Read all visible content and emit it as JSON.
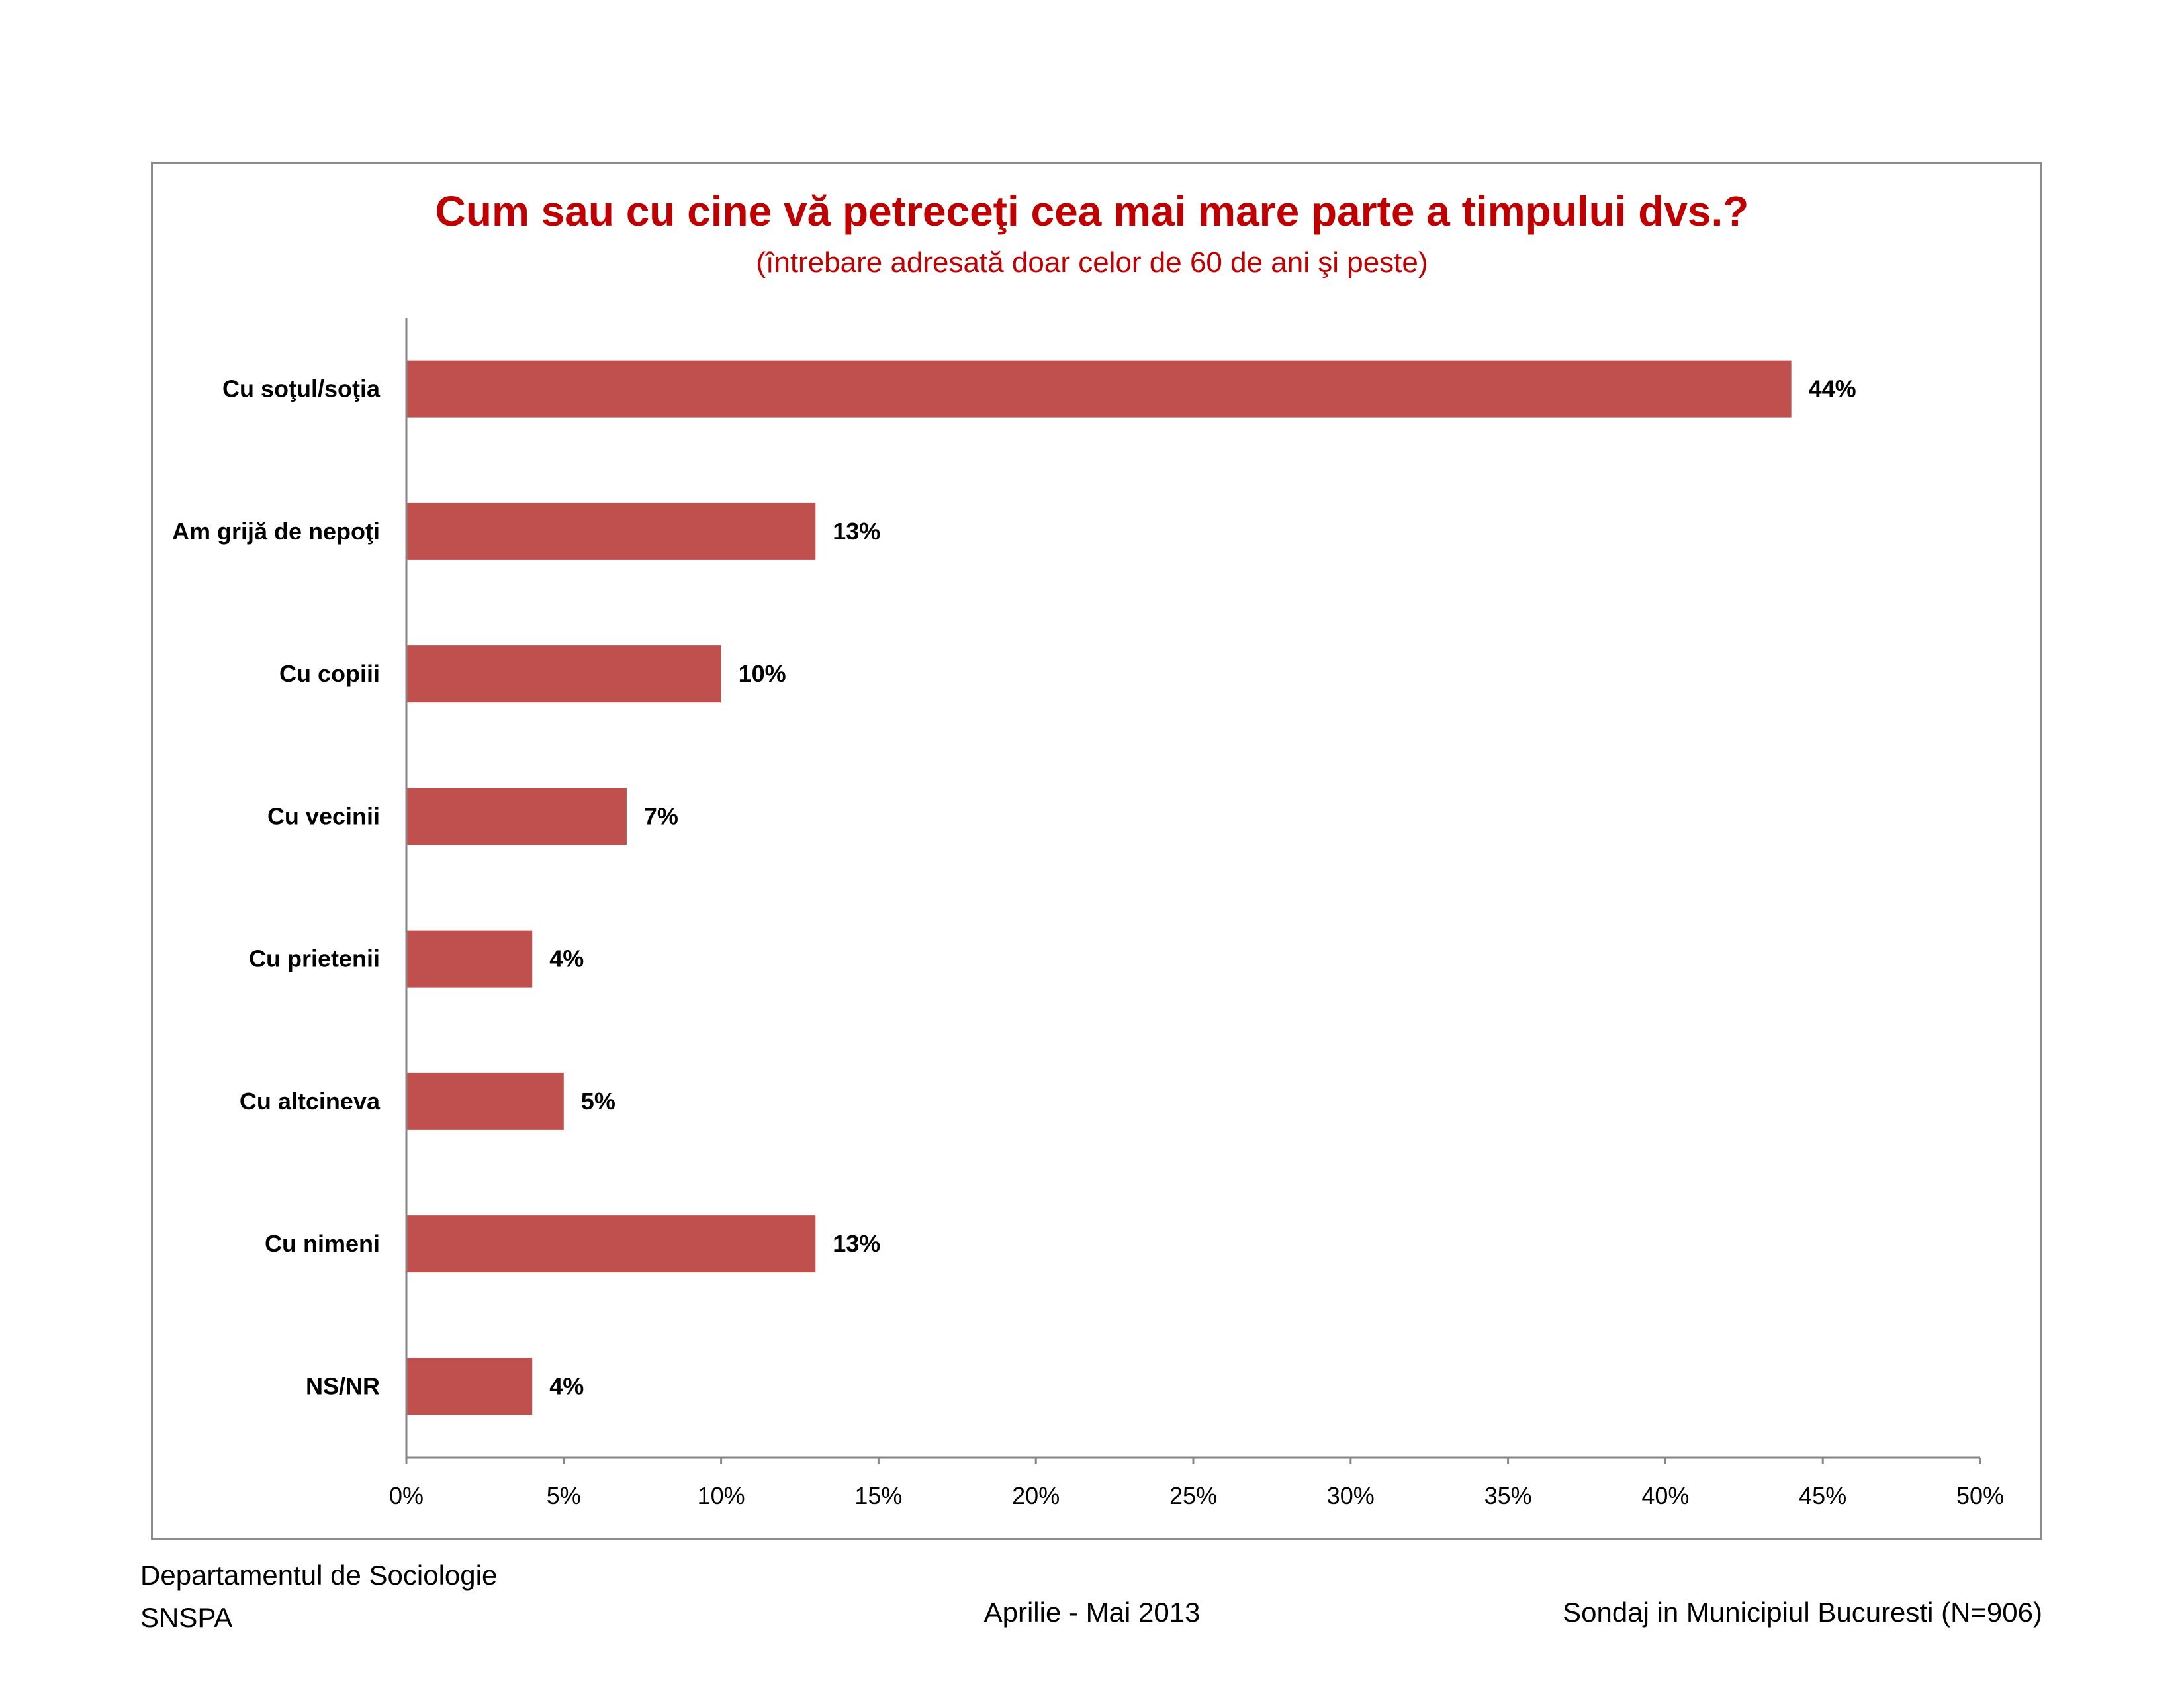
{
  "chart_data": {
    "type": "bar",
    "orientation": "horizontal",
    "title": "Cum sau cu cine vă petreceţi cea mai mare parte a timpului dvs.?",
    "subtitle": "(întrebare adresată  doar celor de 60 de ani şi peste)",
    "categories": [
      "Cu soţul/soţia",
      "Am grijă de nepoţi",
      "Cu copiii",
      "Cu vecinii",
      "Cu prietenii",
      "Cu altcineva",
      "Cu nimeni",
      "NS/NR"
    ],
    "values": [
      44,
      13,
      10,
      7,
      4,
      5,
      13,
      4
    ],
    "value_labels": [
      "44%",
      "13%",
      "10%",
      "7%",
      "4%",
      "5%",
      "13%",
      "4%"
    ],
    "xlim": [
      0,
      50
    ],
    "x_ticks": [
      0,
      5,
      10,
      15,
      20,
      25,
      30,
      35,
      40,
      45,
      50
    ],
    "x_tick_labels": [
      "0%",
      "5%",
      "10%",
      "15%",
      "20%",
      "25%",
      "30%",
      "35%",
      "40%",
      "45%",
      "50%"
    ],
    "grid": false,
    "bar_color": "#c0504d"
  },
  "footer": {
    "department": "Departamentul de Sociologie",
    "organization": "SNSPA",
    "date": "Aprilie - Mai 2013",
    "survey": "Sondaj in Municipiul Bucuresti (N=906)"
  }
}
